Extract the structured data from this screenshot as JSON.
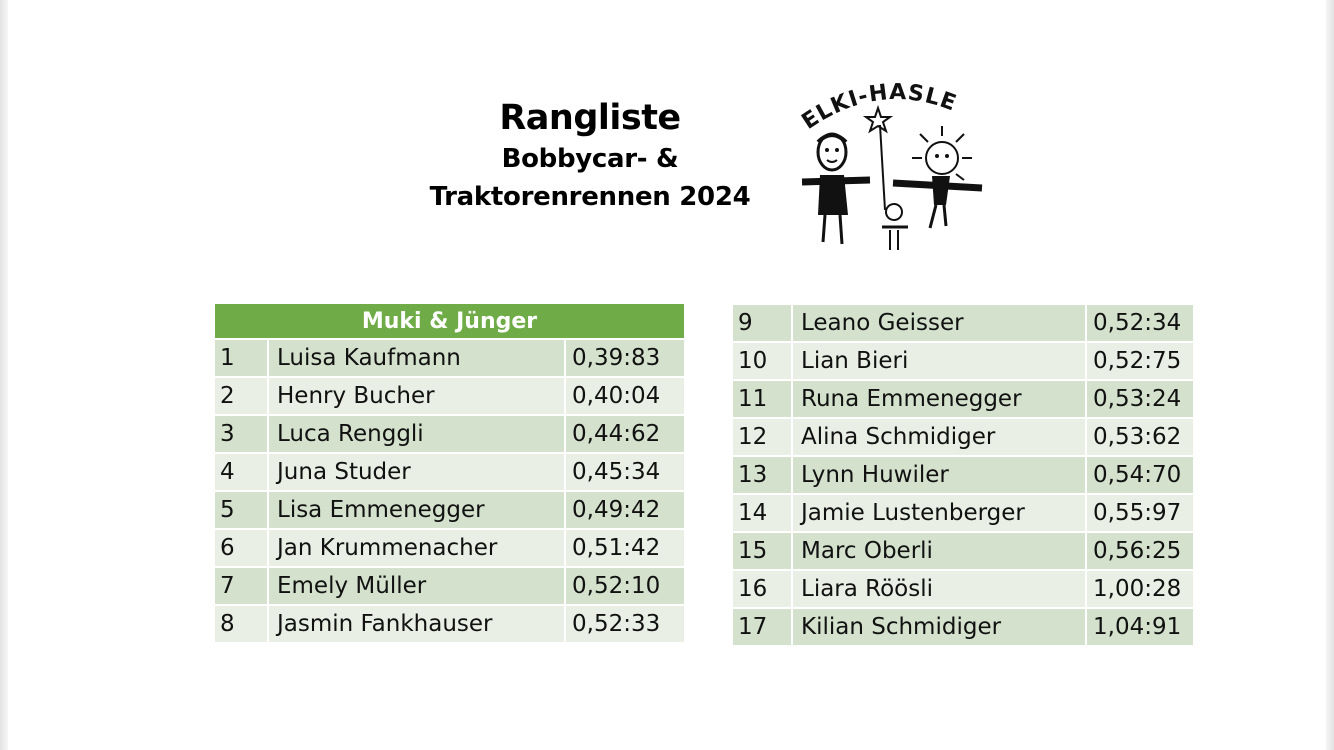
{
  "title": "Rangliste",
  "subtitle_line1": "Bobbycar- &",
  "subtitle_line2": "Traktorenrennen 2024",
  "logo": {
    "text": "ELKI-HASLE",
    "icon": "children-drawing-logo"
  },
  "table_left": {
    "header": "Muki & Jünger",
    "rows": [
      {
        "rank": "1",
        "name": "Luisa Kaufmann",
        "time": "0,39:83"
      },
      {
        "rank": "2",
        "name": "Henry Bucher",
        "time": "0,40:04"
      },
      {
        "rank": "3",
        "name": "Luca Renggli",
        "time": "0,44:62"
      },
      {
        "rank": "4",
        "name": "Juna Studer",
        "time": "0,45:34"
      },
      {
        "rank": "5",
        "name": "Lisa Emmenegger",
        "time": "0,49:42"
      },
      {
        "rank": "6",
        "name": "Jan Krummenacher",
        "time": "0,51:42"
      },
      {
        "rank": "7",
        "name": "Emely Müller",
        "time": "0,52:10"
      },
      {
        "rank": "8",
        "name": "Jasmin Fankhauser",
        "time": "0,52:33"
      }
    ]
  },
  "table_right": {
    "rows": [
      {
        "rank": "9",
        "name": "Leano Geisser",
        "time": "0,52:34"
      },
      {
        "rank": "10",
        "name": "Lian Bieri",
        "time": "0,52:75"
      },
      {
        "rank": "11",
        "name": "Runa Emmenegger",
        "time": "0,53:24"
      },
      {
        "rank": "12",
        "name": "Alina Schmidiger",
        "time": "0,53:62"
      },
      {
        "rank": "13",
        "name": "Lynn Huwiler",
        "time": "0,54:70"
      },
      {
        "rank": "14",
        "name": "Jamie Lustenberger",
        "time": "0,55:97"
      },
      {
        "rank": "15",
        "name": "Marc Oberli",
        "time": "0,56:25"
      },
      {
        "rank": "16",
        "name": "Liara Röösli",
        "time": "1,00:28"
      },
      {
        "rank": "17",
        "name": "Kilian Schmidiger",
        "time": "1,04:91"
      }
    ]
  },
  "colors": {
    "header_green": "#6fac47",
    "row_dark": "#d4e1cd",
    "row_light": "#e9efe4"
  }
}
